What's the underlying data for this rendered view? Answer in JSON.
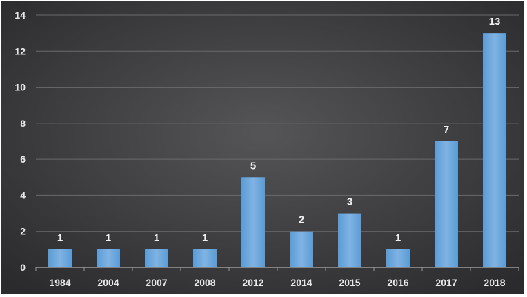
{
  "chart_data": {
    "type": "bar",
    "title": "",
    "xlabel": "",
    "ylabel": "",
    "categories": [
      "1984",
      "2004",
      "2007",
      "2008",
      "2012",
      "2014",
      "2015",
      "2016",
      "2017",
      "2018"
    ],
    "values": [
      1,
      1,
      1,
      1,
      5,
      2,
      3,
      1,
      7,
      13
    ],
    "ylim": [
      0,
      14
    ],
    "yticks": [
      0,
      2,
      4,
      6,
      8,
      10,
      12,
      14
    ],
    "grid": true,
    "legend": "none",
    "colors": {
      "bar": "#5b9bd5",
      "bar_light": "#7fb3e3",
      "background_center": "#555558",
      "background_edge": "#2b2b2d",
      "gridline": "#6a6a6d",
      "axis": "#9a9a9a",
      "text": "#e8e8e8"
    }
  }
}
